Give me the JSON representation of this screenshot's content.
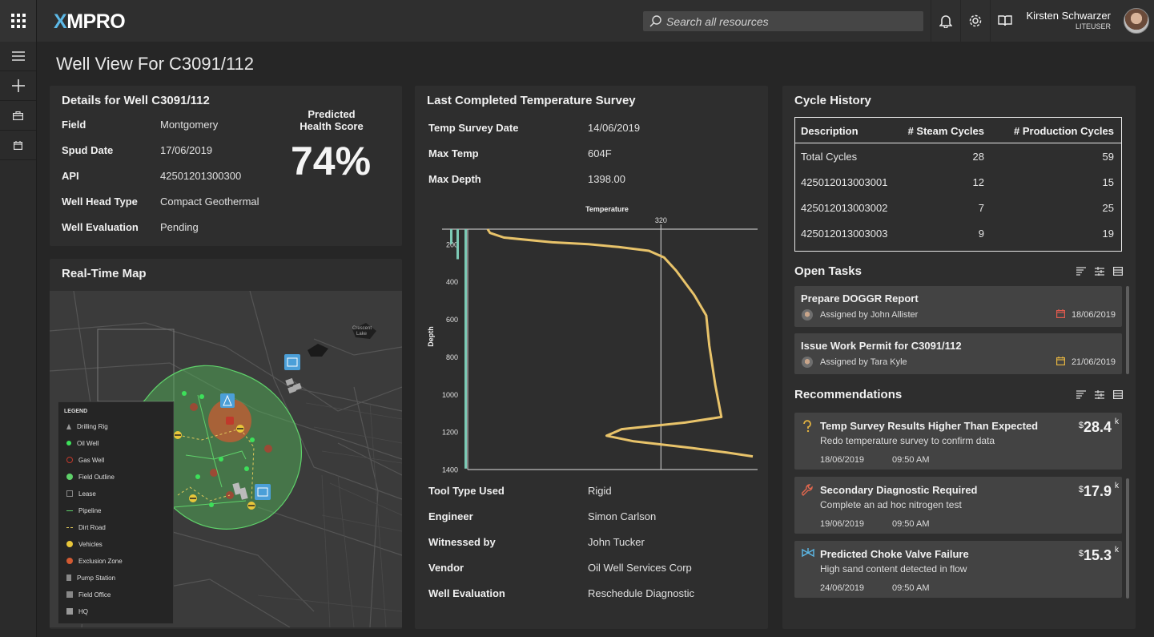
{
  "app": {
    "logo_x": "X",
    "logo_rest": "MPRO",
    "search_placeholder": "Search all resources",
    "user_name": "Kirsten Schwarzer",
    "user_role": "LITEUSER"
  },
  "page_title": "Well View For C3091/112",
  "details": {
    "title": "Details for Well C3091/112",
    "rows": [
      {
        "label": "Field",
        "value": "Montgomery"
      },
      {
        "label": "Spud Date",
        "value": "17/06/2019"
      },
      {
        "label": "API",
        "value": "42501201300300"
      },
      {
        "label": "Well Head Type",
        "value": "Compact Geothermal"
      },
      {
        "label": "Well Evaluation",
        "value": "Pending"
      }
    ],
    "score_label_1": "Predicted",
    "score_label_2": "Health Score",
    "score_value": "74%"
  },
  "map": {
    "title": "Real-Time Map",
    "place_label_1": "Crescent",
    "place_label_2": "Lake",
    "legend_title": "LEGEND",
    "legend_items": [
      "Drilling Rig",
      "Oil Well",
      "Gas Well",
      "Field Outline",
      "Lease",
      "Pipeline",
      "Dirt Road",
      "Vehicles",
      "Exclusion Zone",
      "Pump Station",
      "Field Office",
      "HQ"
    ]
  },
  "survey": {
    "title": "Last Completed Temperature Survey",
    "top_rows": [
      {
        "label": "Temp Survey Date",
        "value": "14/06/2019"
      },
      {
        "label": "Max Temp",
        "value": "604F"
      },
      {
        "label": "Max Depth",
        "value": "1398.00"
      }
    ],
    "bottom_rows": [
      {
        "label": "Tool Type Used",
        "value": "Rigid"
      },
      {
        "label": "Engineer",
        "value": "Simon Carlson"
      },
      {
        "label": "Witnessed by",
        "value": "John Tucker"
      },
      {
        "label": "Vendor",
        "value": "Oil Well Services Corp"
      },
      {
        "label": "Well Evaluation",
        "value": "Reschedule Diagnostic"
      }
    ]
  },
  "chart_data": {
    "type": "line",
    "title": "",
    "xlabel": "Temperature",
    "ylabel": "Depth",
    "x_reference_line": 320,
    "x_reference_label": "320",
    "ylim": [
      1400,
      120
    ],
    "yticks": [
      200,
      400,
      600,
      800,
      1000,
      1200,
      1400
    ],
    "series": [
      {
        "points": [
          [
            33,
            120
          ],
          [
            37,
            140
          ],
          [
            60,
            165
          ],
          [
            140,
            190
          ],
          [
            200,
            200
          ],
          [
            250,
            215
          ],
          [
            300,
            235
          ],
          [
            325,
            270
          ],
          [
            345,
            340
          ],
          [
            375,
            470
          ],
          [
            395,
            580
          ],
          [
            400,
            740
          ],
          [
            410,
            950
          ],
          [
            420,
            1120
          ],
          [
            360,
            1150
          ],
          [
            255,
            1185
          ],
          [
            230,
            1220
          ],
          [
            275,
            1250
          ],
          [
            370,
            1285
          ],
          [
            430,
            1310
          ],
          [
            472,
            1330
          ]
        ]
      }
    ],
    "depth_bars": [
      {
        "depth_to": 200
      },
      {
        "depth_to": 280
      },
      {
        "depth_to": 1395
      }
    ]
  },
  "cycles": {
    "title": "Cycle History",
    "headers": [
      "Description",
      "# Steam Cycles",
      "# Production Cycles"
    ],
    "rows": [
      [
        "Total Cycles",
        "28",
        "59"
      ],
      [
        "425012013003001",
        "12",
        "15"
      ],
      [
        "425012013003002",
        "7",
        "25"
      ],
      [
        "425012013003003",
        "9",
        "19"
      ]
    ]
  },
  "tasks": {
    "title": "Open Tasks",
    "items": [
      {
        "title": "Prepare DOGGR Report",
        "by": "Assigned by John Allister",
        "date": "18/06/2019",
        "cal_color": "#e05a4e"
      },
      {
        "title": "Issue Work Permit for C3091/112",
        "by": "Assigned by Tara Kyle",
        "date": "21/06/2019",
        "cal_color": "#e3b341"
      }
    ]
  },
  "recommendations": {
    "title": "Recommendations",
    "items": [
      {
        "title": "Temp Survey Results Higher Than Expected",
        "sub": "Redo temperature survey to confirm data",
        "date": "18/06/2019",
        "time": "09:50 AM",
        "currency": "$",
        "amount": "28.4",
        "unit": "k",
        "icon": "question-icon",
        "icon_color": "#e3b341"
      },
      {
        "title": "Secondary Diagnostic Required",
        "sub": "Complete an ad hoc nitrogen test",
        "date": "19/06/2019",
        "time": "09:50 AM",
        "currency": "$",
        "amount": "17.9",
        "unit": "k",
        "icon": "wrench-icon",
        "icon_color": "#e0674e"
      },
      {
        "title": "Predicted Choke Valve Failure",
        "sub": "High sand content detected in flow",
        "date": "24/06/2019",
        "time": "09:50 AM",
        "currency": "$",
        "amount": "15.3",
        "unit": "k",
        "icon": "valve-icon",
        "icon_color": "#5cb8e6"
      }
    ]
  }
}
